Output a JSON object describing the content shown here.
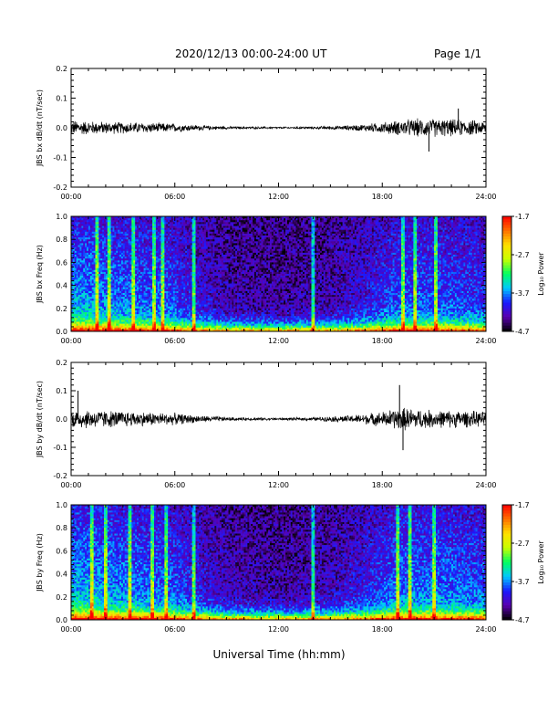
{
  "header": {
    "title": "2020/12/13  00:00-24:00 UT",
    "page": "Page 1/1"
  },
  "x_axis": {
    "title": "Universal Time (hh:mm)",
    "ticks": [
      "00:00",
      "06:00",
      "12:00",
      "18:00",
      "24:00"
    ]
  },
  "colorbar": {
    "title": "Log₁₀ Power",
    "ticks": [
      "-1.7",
      "-2.7",
      "-3.7",
      "-4.7"
    ],
    "range": [
      -4.7,
      -1.7
    ],
    "colormap": [
      "#000000",
      "#5a00b0",
      "#1a1aff",
      "#00c8ff",
      "#00ff60",
      "#c8ff00",
      "#ffe000",
      "#ff7000",
      "#ff0000"
    ]
  },
  "chart_data": [
    {
      "id": "bx-timeseries",
      "type": "line",
      "ylabel": "JBS bx dB/dt (nT/sec)",
      "xlabel": "Universal Time (hh:mm)",
      "xlim": [
        0,
        24
      ],
      "ylim": [
        -0.2,
        0.2
      ],
      "y_ticks": [
        "0.2",
        "0.1",
        "0.0",
        "-0.1",
        "-0.2"
      ],
      "series": [
        {
          "values_desc": "noise envelope half-width vs hour",
          "x": [
            0,
            2,
            4,
            6,
            7,
            8,
            9,
            10,
            12,
            14,
            16,
            17,
            18,
            19,
            20,
            21,
            22,
            23,
            24
          ],
          "y": [
            0.025,
            0.02,
            0.018,
            0.014,
            0.01,
            0.007,
            0.005,
            0.004,
            0.003,
            0.004,
            0.008,
            0.012,
            0.018,
            0.025,
            0.03,
            0.03,
            0.028,
            0.026,
            0.022
          ]
        }
      ],
      "spikes": [
        {
          "x": 20.7,
          "y": -0.08
        },
        {
          "x": 22.4,
          "y": 0.065
        }
      ]
    },
    {
      "id": "bx-spectrogram",
      "type": "heatmap",
      "ylabel": "JBS bx Freq (Hz)",
      "xlabel": "Universal Time (hh:mm)",
      "xlim": [
        0,
        24
      ],
      "ylim": [
        0.0,
        1.0
      ],
      "y_ticks": [
        "1.0",
        "0.8",
        "0.6",
        "0.4",
        "0.2",
        "0.0"
      ],
      "zlabel": "Log₁₀ Power",
      "zlim": [
        -4.7,
        -1.7
      ],
      "activity_by_hour": [
        {
          "x": 0,
          "level": 0.85
        },
        {
          "x": 3,
          "level": 0.7
        },
        {
          "x": 6,
          "level": 0.55
        },
        {
          "x": 7.2,
          "level": 0.35
        },
        {
          "x": 9,
          "level": 0.15
        },
        {
          "x": 12,
          "level": 0.1
        },
        {
          "x": 15,
          "level": 0.15
        },
        {
          "x": 17,
          "level": 0.35
        },
        {
          "x": 19,
          "level": 0.6
        },
        {
          "x": 21,
          "level": 0.6
        },
        {
          "x": 24,
          "level": 0.5
        }
      ],
      "vertical_streaks": [
        1.5,
        2.2,
        3.6,
        4.8,
        5.3,
        7.1,
        14.0,
        19.2,
        19.9,
        21.1
      ]
    },
    {
      "id": "by-timeseries",
      "type": "line",
      "ylabel": "JBS by dB/dt (nT/sec)",
      "xlabel": "Universal Time (hh:mm)",
      "xlim": [
        0,
        24
      ],
      "ylim": [
        -0.2,
        0.2
      ],
      "y_ticks": [
        "0.2",
        "0.1",
        "0.0",
        "-0.1",
        "-0.2"
      ],
      "series": [
        {
          "values_desc": "noise envelope half-width vs hour",
          "x": [
            0,
            2,
            4,
            6,
            7,
            8,
            9,
            10,
            12,
            14,
            16,
            17,
            18,
            19,
            20,
            21,
            22,
            23,
            24
          ],
          "y": [
            0.035,
            0.03,
            0.025,
            0.02,
            0.014,
            0.01,
            0.007,
            0.005,
            0.004,
            0.006,
            0.012,
            0.018,
            0.025,
            0.04,
            0.035,
            0.03,
            0.03,
            0.028,
            0.025
          ]
        }
      ],
      "spikes": [
        {
          "x": 0.4,
          "y": 0.1
        },
        {
          "x": 19.0,
          "y": 0.12
        },
        {
          "x": 19.2,
          "y": -0.11
        }
      ]
    },
    {
      "id": "by-spectrogram",
      "type": "heatmap",
      "ylabel": "JBS by Freq (Hz)",
      "xlabel": "Universal Time (hh:mm)",
      "xlim": [
        0,
        24
      ],
      "ylim": [
        0.0,
        1.0
      ],
      "y_ticks": [
        "1.0",
        "0.8",
        "0.6",
        "0.4",
        "0.2",
        "0.0"
      ],
      "zlabel": "Log₁₀ Power",
      "zlim": [
        -4.7,
        -1.7
      ],
      "activity_by_hour": [
        {
          "x": 0,
          "level": 0.9
        },
        {
          "x": 3,
          "level": 0.75
        },
        {
          "x": 6,
          "level": 0.6
        },
        {
          "x": 7.2,
          "level": 0.4
        },
        {
          "x": 9,
          "level": 0.2
        },
        {
          "x": 12,
          "level": 0.12
        },
        {
          "x": 15,
          "level": 0.2
        },
        {
          "x": 17,
          "level": 0.4
        },
        {
          "x": 19,
          "level": 0.7
        },
        {
          "x": 21,
          "level": 0.7
        },
        {
          "x": 24,
          "level": 0.6
        }
      ],
      "vertical_streaks": [
        1.2,
        2.0,
        3.4,
        4.7,
        5.5,
        7.1,
        14.0,
        18.9,
        19.6,
        21.0
      ]
    }
  ]
}
